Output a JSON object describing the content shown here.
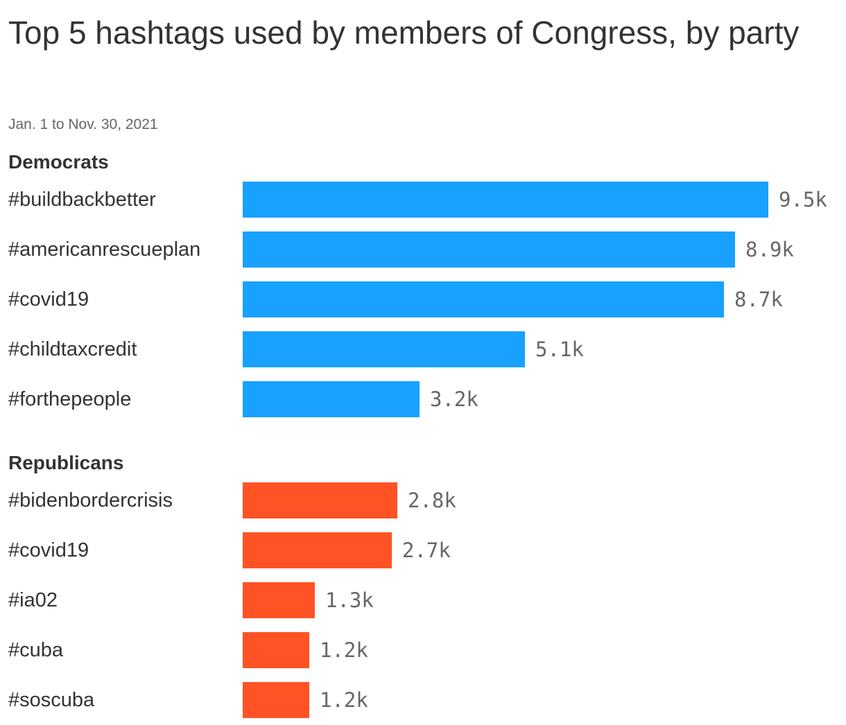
{
  "title": "Top 5 hashtags used by members of Congress, by party",
  "subtitle": "Jan. 1 to Nov. 30, 2021",
  "colors": {
    "democrats": "#18a1ff",
    "republicans": "#ff5225"
  },
  "chart_data": {
    "type": "bar",
    "orientation": "horizontal",
    "title": "Top 5 hashtags used by members of Congress, by party",
    "subtitle": "Jan. 1 to Nov. 30, 2021",
    "grid": false,
    "groups": [
      {
        "name": "Democrats",
        "color": "#18a1ff",
        "categories": [
          "#buildbackbetter",
          "#americanrescueplan",
          "#covid19",
          "#childtaxcredit",
          "#forthepeople"
        ],
        "values": [
          9500,
          8900,
          8700,
          5100,
          3200
        ],
        "labels": [
          "9.5k",
          "8.9k",
          "8.7k",
          "5.1k",
          "3.2k"
        ]
      },
      {
        "name": "Republicans",
        "color": "#ff5225",
        "categories": [
          "#bidenbordercrisis",
          "#covid19",
          "#ia02",
          "#cuba",
          "#soscuba"
        ],
        "values": [
          2800,
          2700,
          1300,
          1200,
          1200
        ],
        "labels": [
          "2.8k",
          "2.7k",
          "1.3k",
          "1.2k",
          "1.2k"
        ]
      }
    ]
  }
}
